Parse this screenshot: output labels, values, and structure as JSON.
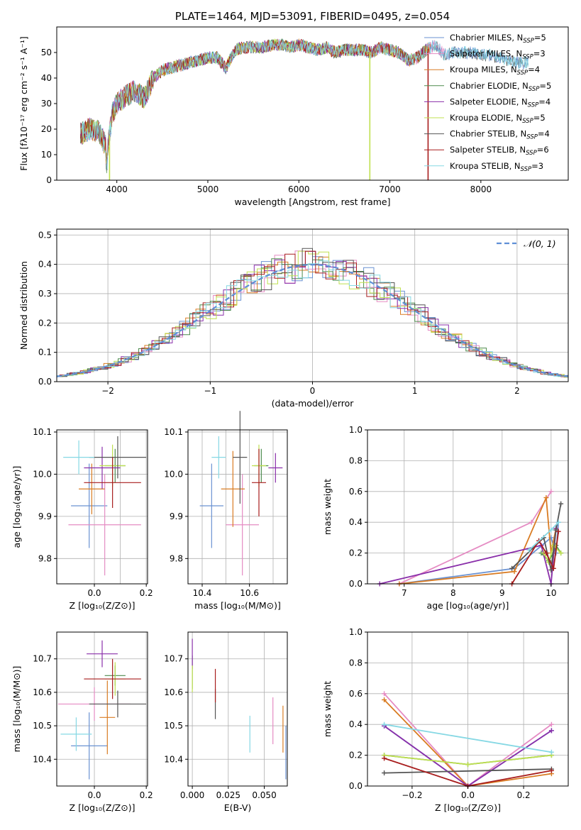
{
  "colors": {
    "chab_miles": "#6a92d2",
    "salp_miles": "#e58bc3",
    "krou_miles": "#d97c23",
    "chab_elod": "#4d8a4d",
    "salp_elod": "#8a2faa",
    "krou_elod": "#bfe04f",
    "chab_stel": "#555555",
    "salp_stel": "#a81d1d",
    "krou_stel": "#86d8e4",
    "gauss": "#5f8fd6",
    "grid": "#b0b0b0"
  },
  "chart_data": [
    {
      "id": "spectrum",
      "type": "line",
      "title": "PLATE=1464, MJD=53091, FIBERID=0495, z=0.054",
      "xlabel": "wavelength [Angstrom, rest frame]",
      "ylabel": "Flux [fλ10⁻¹⁷ erg cm⁻² s⁻¹ A⁻¹]",
      "xlim": [
        3340,
        8960
      ],
      "ylim": [
        0,
        60
      ],
      "xticks": [
        "4000",
        "5000",
        "6000",
        "7000",
        "8000"
      ],
      "yticks": [
        "0",
        "10",
        "20",
        "30",
        "40",
        "50"
      ],
      "grid": false,
      "legend_loc": "upper right",
      "legend": [
        {
          "key": "chab_miles",
          "text": "Chabrier MILES, N",
          "sub": "SSP",
          "tail": "=5"
        },
        {
          "key": "salp_miles",
          "text": "Salpeter MILES, N",
          "sub": "SSP",
          "tail": "=3"
        },
        {
          "key": "krou_miles",
          "text": "Kroupa MILES, N",
          "sub": "SSP",
          "tail": "=4"
        },
        {
          "key": "chab_elod",
          "text": "Chabrier ELODIE, N",
          "sub": "SSP",
          "tail": "=5"
        },
        {
          "key": "salp_elod",
          "text": "Salpeter ELODIE, N",
          "sub": "SSP",
          "tail": "=4"
        },
        {
          "key": "krou_elod",
          "text": "Kroupa ELODIE, N",
          "sub": "SSP",
          "tail": "=5"
        },
        {
          "key": "chab_stel",
          "text": "Chabrier STELIB, N",
          "sub": "SSP",
          "tail": "=4"
        },
        {
          "key": "salp_stel",
          "text": "Salpeter STELIB, N",
          "sub": "SSP",
          "tail": "=6"
        },
        {
          "key": "krou_stel",
          "text": "Kroupa STELIB, N",
          "sub": "SSP",
          "tail": "=3"
        }
      ],
      "anchors": [
        [
          3600,
          18
        ],
        [
          3700,
          20
        ],
        [
          3800,
          19
        ],
        [
          3900,
          12
        ],
        [
          3950,
          26
        ],
        [
          4000,
          30
        ],
        [
          4100,
          33
        ],
        [
          4200,
          35
        ],
        [
          4300,
          32
        ],
        [
          4400,
          40
        ],
        [
          4500,
          43
        ],
        [
          4600,
          44
        ],
        [
          4700,
          45
        ],
        [
          4800,
          46
        ],
        [
          4900,
          47
        ],
        [
          5000,
          48
        ],
        [
          5100,
          48
        ],
        [
          5200,
          44
        ],
        [
          5300,
          51
        ],
        [
          5400,
          52
        ],
        [
          5500,
          52
        ],
        [
          5600,
          52
        ],
        [
          5700,
          53
        ],
        [
          5800,
          53
        ],
        [
          5900,
          52
        ],
        [
          6000,
          53
        ],
        [
          6100,
          52
        ],
        [
          6200,
          51
        ],
        [
          6300,
          52
        ],
        [
          6400,
          50
        ],
        [
          6500,
          51
        ],
        [
          6600,
          51
        ],
        [
          6700,
          51
        ],
        [
          6800,
          50
        ],
        [
          6900,
          52
        ],
        [
          7000,
          51
        ],
        [
          7100,
          50
        ],
        [
          7200,
          47
        ],
        [
          7300,
          48
        ],
        [
          7400,
          51
        ],
        [
          7500,
          53
        ],
        [
          7600,
          49
        ],
        [
          7700,
          50
        ],
        [
          7800,
          50
        ],
        [
          7900,
          50
        ],
        [
          8000,
          49
        ],
        [
          8100,
          49
        ],
        [
          8200,
          48
        ],
        [
          8300,
          47
        ],
        [
          8400,
          46
        ],
        [
          8500,
          46
        ]
      ],
      "series_end_x": [
        8520,
        7650,
        7450,
        7420,
        7400,
        7420,
        8520,
        7420,
        8520
      ],
      "drop_x": [
        3920,
        6780,
        7420
      ]
    },
    {
      "id": "residuals",
      "type": "step",
      "xlabel": "(data-model)/error",
      "ylabel": "Normed distribution",
      "xlim": [
        -2.5,
        2.5
      ],
      "ylim": [
        0,
        0.52
      ],
      "xticks": [
        "−2",
        "−1",
        "0",
        "1",
        "2"
      ],
      "yticks": [
        "0.0",
        "0.1",
        "0.2",
        "0.3",
        "0.4",
        "0.5"
      ],
      "grid": true,
      "legend_label": "𝒩(0, 1)",
      "legend_loc": "upper right",
      "bin_width": 0.1
    },
    {
      "id": "age_vs_Z",
      "type": "errorbar",
      "xlabel": "Z [log₁₀(Z/Z⊙)]",
      "ylabel": "age  [log₁₀(age/yr)]",
      "xlim": [
        -0.145,
        0.205
      ],
      "ylim": [
        9.74,
        10.105
      ],
      "xticks": [
        "0.0",
        "0.2"
      ],
      "yticks": [
        "9.8",
        "9.9",
        "10.0",
        "10.1"
      ],
      "grid": true,
      "points": [
        {
          "key": "chab_miles",
          "x": -0.02,
          "y": 9.925,
          "xerr": 0.07,
          "yerr": 0.1
        },
        {
          "key": "salp_miles",
          "x": 0.04,
          "y": 9.88,
          "xerr": 0.14,
          "yerr": 0.12
        },
        {
          "key": "krou_miles",
          "x": -0.01,
          "y": 9.965,
          "xerr": 0.05,
          "yerr": 0.06
        },
        {
          "key": "chab_elod",
          "x": 0.08,
          "y": 10.02,
          "xerr": 0.04,
          "yerr": 0.04
        },
        {
          "key": "salp_elod",
          "x": 0.03,
          "y": 10.015,
          "xerr": 0.07,
          "yerr": 0.05
        },
        {
          "key": "krou_elod",
          "x": 0.07,
          "y": 10.02,
          "xerr": 0.05,
          "yerr": 0.05
        },
        {
          "key": "chab_stel",
          "x": 0.09,
          "y": 10.04,
          "xerr": 0.11,
          "yerr": 0.05
        },
        {
          "key": "salp_stel",
          "x": 0.07,
          "y": 9.98,
          "xerr": 0.11,
          "yerr": 0.06
        },
        {
          "key": "krou_stel",
          "x": -0.06,
          "y": 10.04,
          "xerr": 0.06,
          "yerr": 0.04
        }
      ]
    },
    {
      "id": "age_vs_mass",
      "type": "errorbar",
      "xlabel": "mass [log₁₀(M/M⊙)]",
      "ylabel": "",
      "xlim": [
        10.34,
        10.76
      ],
      "ylim": [
        9.74,
        10.105
      ],
      "xticks": [
        "10.4",
        "10.6"
      ],
      "yticks": [
        "9.8",
        "9.9",
        "10.0",
        "10.1"
      ],
      "grid": true,
      "points": [
        {
          "key": "chab_miles",
          "x": 10.44,
          "y": 9.925,
          "xerr": 0.05,
          "yerr": 0.1
        },
        {
          "key": "salp_miles",
          "x": 10.57,
          "y": 9.88,
          "xerr": 0.07,
          "yerr": 0.12
        },
        {
          "key": "krou_miles",
          "x": 10.53,
          "y": 9.965,
          "xerr": 0.05,
          "yerr": 0.09
        },
        {
          "key": "chab_elod",
          "x": 10.65,
          "y": 10.02,
          "xerr": 0.03,
          "yerr": 0.04
        },
        {
          "key": "salp_elod",
          "x": 10.71,
          "y": 10.015,
          "xerr": 0.03,
          "yerr": 0.035
        },
        {
          "key": "krou_elod",
          "x": 10.64,
          "y": 10.02,
          "xerr": 0.03,
          "yerr": 0.05
        },
        {
          "key": "chab_stel",
          "x": 10.56,
          "y": 10.04,
          "xerr": 0.03,
          "yerr": 0.11
        },
        {
          "key": "salp_stel",
          "x": 10.64,
          "y": 9.98,
          "xerr": 0.03,
          "yerr": 0.08
        },
        {
          "key": "krou_stel",
          "x": 10.47,
          "y": 10.04,
          "xerr": 0.03,
          "yerr": 0.05
        }
      ]
    },
    {
      "id": "mw_vs_age",
      "type": "line",
      "xlabel": "age  [log₁₀(age/yr)]",
      "ylabel": "mass weight",
      "xlim": [
        6.25,
        10.35
      ],
      "ylim": [
        0,
        1.0
      ],
      "xticks": [
        "7",
        "8",
        "9",
        "10"
      ],
      "yticks": [
        "0.0",
        "0.2",
        "0.4",
        "0.6",
        "0.8",
        "1.0"
      ],
      "grid": true,
      "series": [
        {
          "key": "chab_miles",
          "x": [
            6.9,
            9.25,
            10.0,
            10.1,
            10.15
          ],
          "y": [
            0.0,
            0.1,
            0.3,
            0.2,
            0.4
          ]
        },
        {
          "key": "salp_miles",
          "x": [
            6.9,
            9.6,
            10.0
          ],
          "y": [
            0.0,
            0.4,
            0.6
          ]
        },
        {
          "key": "krou_miles",
          "x": [
            6.9,
            9.25,
            9.9,
            10.0,
            10.1
          ],
          "y": [
            0.0,
            0.08,
            0.56,
            0.2,
            0.36
          ]
        },
        {
          "key": "chab_elod",
          "x": [
            9.8,
            9.95,
            10.05,
            10.1,
            10.2
          ],
          "y": [
            0.2,
            0.15,
            0.2,
            0.25,
            0.2
          ]
        },
        {
          "key": "salp_elod",
          "x": [
            6.5,
            9.8,
            10.0,
            10.1
          ],
          "y": [
            0.0,
            0.25,
            0.0,
            0.36
          ]
        },
        {
          "key": "krou_elod",
          "x": [
            9.85,
            9.95,
            10.05,
            10.2
          ],
          "y": [
            0.2,
            0.14,
            0.25,
            0.2
          ]
        },
        {
          "key": "chab_stel",
          "x": [
            9.2,
            9.85,
            10.0,
            10.1,
            10.2
          ],
          "y": [
            0.1,
            0.3,
            0.09,
            0.35,
            0.52
          ]
        },
        {
          "key": "salp_stel",
          "x": [
            9.2,
            9.75,
            9.9,
            10.05,
            10.15
          ],
          "y": [
            0.0,
            0.28,
            0.2,
            0.1,
            0.34
          ]
        },
        {
          "key": "krou_stel",
          "x": [
            9.55,
            10.0,
            10.15
          ],
          "y": [
            0.22,
            0.35,
            0.4
          ]
        }
      ]
    },
    {
      "id": "mass_vs_Z",
      "type": "errorbar",
      "xlabel": "Z [log₁₀(Z/Z⊙)]",
      "ylabel": "mass [log₁₀(M/M⊙)]",
      "xlim": [
        -0.145,
        0.205
      ],
      "ylim": [
        10.32,
        10.78
      ],
      "xticks": [
        "0.0",
        "0.2"
      ],
      "yticks": [
        "10.4",
        "10.5",
        "10.6",
        "10.7"
      ],
      "grid": true,
      "points": [
        {
          "key": "chab_miles",
          "x": -0.02,
          "y": 10.44,
          "xerr": 0.07,
          "yerr": 0.1
        },
        {
          "key": "salp_miles",
          "x": 0.0,
          "y": 10.565,
          "xerr": 0.14,
          "yerr": 0.05
        },
        {
          "key": "krou_miles",
          "x": 0.05,
          "y": 10.525,
          "xerr": 0.03,
          "yerr": 0.11
        },
        {
          "key": "chab_elod",
          "x": 0.08,
          "y": 10.65,
          "xerr": 0.04,
          "yerr": 0.03
        },
        {
          "key": "salp_elod",
          "x": 0.03,
          "y": 10.715,
          "xerr": 0.06,
          "yerr": 0.04
        },
        {
          "key": "krou_elod",
          "x": 0.08,
          "y": 10.64,
          "xerr": 0.04,
          "yerr": 0.05
        },
        {
          "key": "chab_stel",
          "x": 0.09,
          "y": 10.565,
          "xerr": 0.11,
          "yerr": 0.04
        },
        {
          "key": "salp_stel",
          "x": 0.07,
          "y": 10.64,
          "xerr": 0.11,
          "yerr": 0.06
        },
        {
          "key": "krou_stel",
          "x": -0.07,
          "y": 10.475,
          "xerr": 0.06,
          "yerr": 0.05
        }
      ]
    },
    {
      "id": "mass_vs_ebv",
      "type": "errorbar",
      "xlabel": "E(B-V)",
      "ylabel": "",
      "xlim": [
        -0.003,
        0.066
      ],
      "ylim": [
        10.32,
        10.78
      ],
      "xticks": [
        "0.000",
        "0.025",
        "0.050"
      ],
      "yticks": [
        "10.4",
        "10.5",
        "10.6",
        "10.7"
      ],
      "grid": true,
      "points": [
        {
          "key": "chab_miles",
          "x": 0.065,
          "y": 10.42,
          "xerr": 0,
          "yerr": 0.08
        },
        {
          "key": "salp_miles",
          "x": 0.056,
          "y": 10.515,
          "xerr": 0,
          "yerr": 0.07
        },
        {
          "key": "krou_miles",
          "x": 0.063,
          "y": 10.49,
          "xerr": 0,
          "yerr": 0.07
        },
        {
          "key": "chab_elod",
          "x": 0.0,
          "y": 10.66,
          "xerr": 0,
          "yerr": 0.05
        },
        {
          "key": "salp_elod",
          "x": 0.0,
          "y": 10.715,
          "xerr": 0,
          "yerr": 0.045
        },
        {
          "key": "krou_elod",
          "x": 0.0,
          "y": 10.64,
          "xerr": 0,
          "yerr": 0.04
        },
        {
          "key": "chab_stel",
          "x": 0.016,
          "y": 10.565,
          "xerr": 0,
          "yerr": 0.045
        },
        {
          "key": "salp_stel",
          "x": 0.016,
          "y": 10.62,
          "xerr": 0,
          "yerr": 0.05
        },
        {
          "key": "krou_stel",
          "x": 0.04,
          "y": 10.475,
          "xerr": 0,
          "yerr": 0.055
        }
      ]
    },
    {
      "id": "mw_vs_Z",
      "type": "line",
      "xlabel": "Z [log₁₀(Z/Z⊙)]",
      "ylabel": "mass weight",
      "xlim": [
        -0.36,
        0.36
      ],
      "ylim": [
        0,
        1.0
      ],
      "xticks": [
        "−0.2",
        "0.0",
        "0.2"
      ],
      "yticks": [
        "0.0",
        "0.2",
        "0.4",
        "0.6",
        "0.8",
        "1.0"
      ],
      "grid": true,
      "series": [
        {
          "key": "chab_miles",
          "x": [
            -0.3,
            0.0,
            0.3
          ],
          "y": [
            0.39,
            0.0,
            0.36
          ]
        },
        {
          "key": "salp_miles",
          "x": [
            -0.3,
            0.0,
            0.3
          ],
          "y": [
            0.6,
            0.0,
            0.4
          ]
        },
        {
          "key": "krou_miles",
          "x": [
            -0.3,
            0.0,
            0.3
          ],
          "y": [
            0.56,
            0.0,
            0.08
          ]
        },
        {
          "key": "chab_elod",
          "x": [
            -0.3,
            0.0,
            0.3
          ],
          "y": [
            0.2,
            0.14,
            0.2
          ]
        },
        {
          "key": "salp_elod",
          "x": [
            -0.3,
            0.0,
            0.3
          ],
          "y": [
            0.39,
            0.0,
            0.36
          ]
        },
        {
          "key": "krou_elod",
          "x": [
            -0.3,
            0.0,
            0.3
          ],
          "y": [
            0.2,
            0.14,
            0.2
          ]
        },
        {
          "key": "chab_stel",
          "x": [
            -0.3,
            0.3
          ],
          "y": [
            0.085,
            0.11
          ]
        },
        {
          "key": "salp_stel",
          "x": [
            -0.3,
            0.0,
            0.3
          ],
          "y": [
            0.18,
            0.0,
            0.1
          ]
        },
        {
          "key": "krou_stel",
          "x": [
            -0.3,
            0.3
          ],
          "y": [
            0.4,
            0.22
          ]
        }
      ]
    }
  ]
}
